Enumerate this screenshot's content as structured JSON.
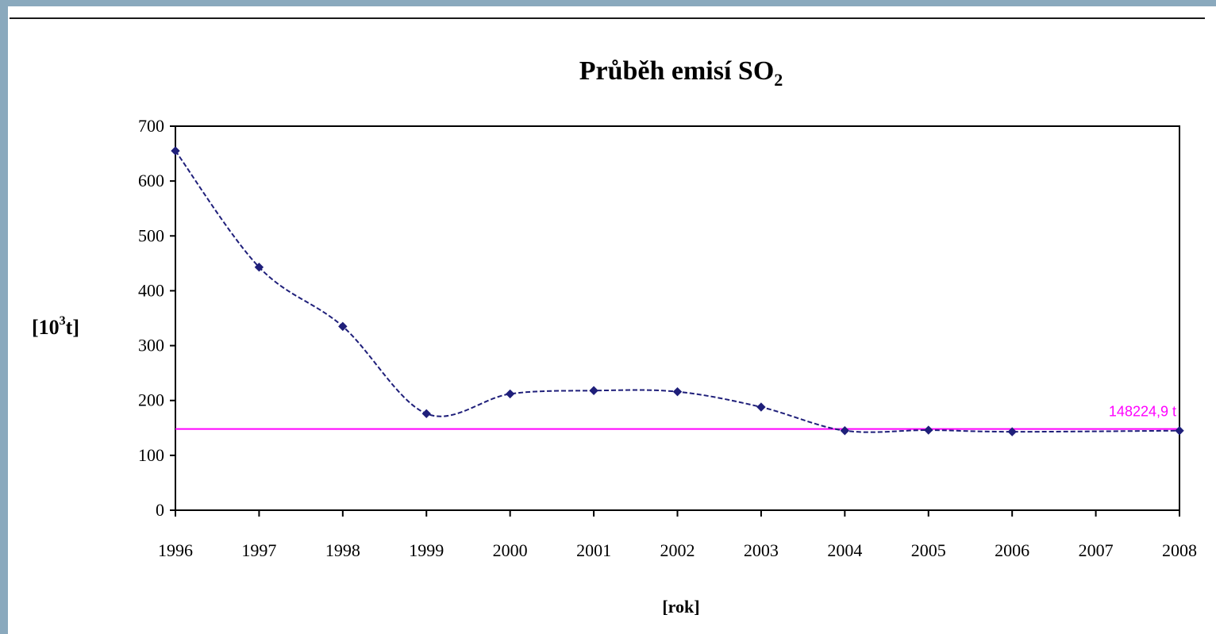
{
  "chart_data": {
    "type": "line",
    "title": "Průběh emisí SO",
    "title_subscript": "2",
    "ylabel": "[10",
    "ylabel_superscript": "3",
    "ylabel_suffix": "t]",
    "xlabel": "[rok]",
    "ylim": [
      0,
      700
    ],
    "yticks": [
      0,
      100,
      200,
      300,
      400,
      500,
      600,
      700
    ],
    "categories": [
      "1996",
      "1997",
      "1998",
      "1999",
      "2000",
      "2001",
      "2002",
      "2003",
      "2004",
      "2005",
      "2006",
      "2007",
      "2008"
    ],
    "series": [
      {
        "color": "#1f1f7a",
        "values": [
          655,
          443,
          335,
          176,
          212,
          218,
          216,
          188,
          145,
          146,
          143,
          null,
          145
        ]
      }
    ],
    "reference_line": {
      "value": 148224.9,
      "display_value": 148,
      "label": "148224,9 t",
      "color": "#ff00ff"
    },
    "grid": false,
    "legend": "none"
  }
}
